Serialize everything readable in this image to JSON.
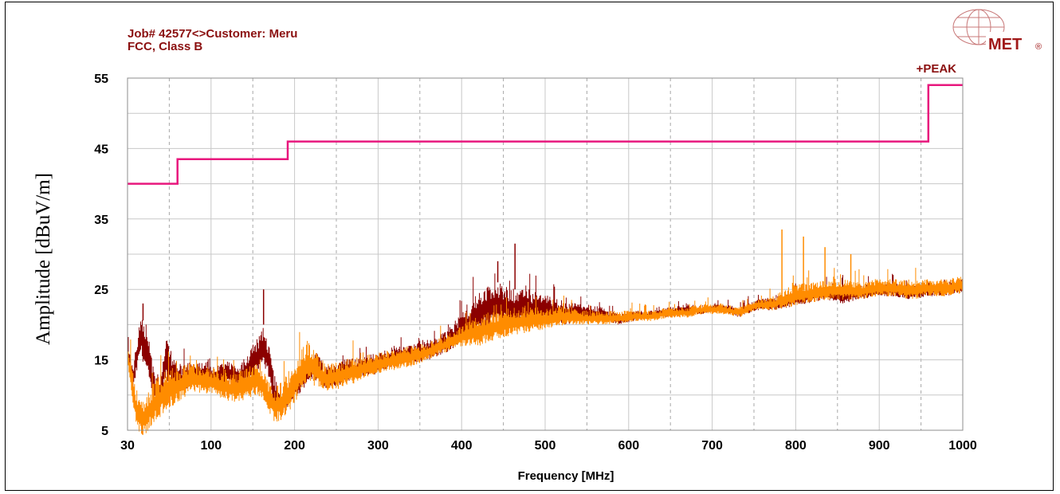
{
  "header": {
    "line1": "Job# 42577<>Customer: Meru",
    "line2": "FCC, Class B"
  },
  "logo": {
    "text": "MET",
    "registered": "®",
    "icon": "globe-icon",
    "color": "#a01818"
  },
  "chart_data": {
    "type": "line",
    "xlabel": "Frequency [MHz]",
    "ylabel": "Amplitude [dBuV/m]",
    "xlim": [
      30,
      1000
    ],
    "ylim": [
      5,
      55
    ],
    "x_ticks": [
      30,
      100,
      200,
      300,
      400,
      500,
      600,
      700,
      800,
      900,
      1000
    ],
    "y_ticks": [
      5,
      15,
      25,
      35,
      45,
      55
    ],
    "grid": true,
    "legend": {
      "placement": "top-right",
      "entries": [
        "+PEAK"
      ]
    },
    "series": [
      {
        "role": "limit",
        "color": "#e8177d",
        "x": [
          30,
          88,
          88,
          216,
          216,
          960,
          960,
          1000
        ],
        "y": [
          40,
          40,
          43.5,
          43.5,
          46,
          46,
          54,
          54
        ]
      },
      {
        "role": "peak-upper",
        "color": "#8b0000",
        "x": [
          30,
          36,
          45,
          52,
          60,
          66,
          75,
          82,
          90,
          100,
          110,
          120,
          130,
          140,
          150,
          160,
          170,
          180,
          188,
          195,
          200,
          210,
          220,
          230,
          240,
          250,
          260,
          280,
          300,
          320,
          340,
          360,
          380,
          400,
          420,
          440,
          460,
          480,
          500,
          520,
          540,
          560,
          580,
          600,
          620,
          640,
          660,
          680,
          700,
          720,
          740,
          760,
          780,
          800,
          820,
          840,
          860,
          880,
          900,
          920,
          940,
          960,
          980,
          1000
        ],
        "y": [
          18,
          14,
          21,
          20,
          14,
          11,
          18,
          16,
          14,
          15,
          14.5,
          15,
          14,
          14.5,
          15,
          14,
          16,
          18,
          20,
          17,
          13,
          10,
          12,
          14,
          15,
          16,
          14,
          15,
          15.5,
          16,
          17,
          17.5,
          18,
          19,
          22,
          25,
          26,
          25,
          25,
          24,
          23.5,
          23,
          22.5,
          21.5,
          22,
          22,
          22.5,
          23,
          22.5,
          23,
          22.5,
          23.5,
          24,
          24.5,
          25,
          25.5,
          25.5,
          25.5,
          26,
          26,
          25.5,
          26,
          26,
          26.5
        ]
      },
      {
        "role": "peak-lower",
        "color": "#8b0000",
        "x": [
          30,
          36,
          45,
          52,
          60,
          66,
          75,
          82,
          90,
          100,
          110,
          120,
          130,
          140,
          150,
          160,
          170,
          180,
          188,
          195,
          200,
          210,
          220,
          230,
          240,
          250,
          260,
          280,
          300,
          320,
          340,
          360,
          380,
          400,
          420,
          440,
          460,
          480,
          500,
          520,
          540,
          560,
          580,
          600,
          620,
          640,
          660,
          680,
          700,
          720,
          740,
          760,
          780,
          800,
          820,
          840,
          860,
          880,
          900,
          920,
          940,
          960,
          980,
          1000
        ],
        "y": [
          15,
          10,
          16,
          13,
          9,
          8,
          12,
          11,
          10,
          11,
          11.5,
          12,
          11.5,
          11,
          11.5,
          11,
          12,
          13,
          14,
          12,
          8,
          7,
          9,
          10,
          12,
          12,
          11,
          11.5,
          12.5,
          13,
          14,
          14.5,
          15,
          16,
          17.5,
          19,
          20,
          20,
          20,
          20.5,
          20,
          20.5,
          20.5,
          20,
          20.5,
          21,
          21,
          21.5,
          21.5,
          22,
          21,
          22,
          22,
          22.5,
          23,
          23.5,
          23,
          23.5,
          24,
          24,
          23.5,
          24,
          24,
          24.5
        ]
      },
      {
        "role": "quasi-upper",
        "color": "#ff8c00",
        "x": [
          30,
          35,
          40,
          45,
          50,
          55,
          60,
          70,
          80,
          90,
          100,
          110,
          120,
          130,
          140,
          150,
          160,
          170,
          180,
          190,
          200,
          210,
          220,
          230,
          240,
          250,
          260,
          280,
          300,
          320,
          340,
          360,
          380,
          400,
          420,
          440,
          460,
          480,
          500,
          520,
          540,
          560,
          580,
          600,
          620,
          640,
          660,
          680,
          700,
          720,
          740,
          760,
          780,
          800,
          820,
          840,
          860,
          880,
          900,
          920,
          940,
          960,
          980,
          1000
        ],
        "y": [
          18,
          14,
          11,
          10,
          10,
          11,
          12,
          13,
          14,
          14,
          14.5,
          14.5,
          14,
          14,
          13.5,
          13,
          13.5,
          14,
          14.5,
          13,
          11,
          12,
          14,
          16,
          18,
          16,
          14.5,
          15,
          15.5,
          16,
          16.5,
          17,
          17.5,
          18.5,
          20,
          21.5,
          22,
          22.5,
          22.5,
          22.5,
          22.5,
          22,
          22,
          22,
          22,
          22,
          22.5,
          22.5,
          23,
          23,
          22.5,
          23.5,
          24,
          25.5,
          26,
          26.5,
          26.5,
          26,
          26.5,
          26.5,
          26.5,
          26.5,
          26.5,
          27
        ]
      },
      {
        "role": "quasi-lower",
        "color": "#ff8c00",
        "x": [
          30,
          35,
          40,
          45,
          50,
          55,
          60,
          70,
          80,
          90,
          100,
          110,
          120,
          130,
          140,
          150,
          160,
          170,
          180,
          190,
          200,
          210,
          220,
          230,
          240,
          250,
          260,
          280,
          300,
          320,
          340,
          360,
          380,
          400,
          420,
          440,
          460,
          480,
          500,
          520,
          540,
          560,
          580,
          600,
          620,
          640,
          660,
          680,
          700,
          720,
          740,
          760,
          780,
          800,
          820,
          840,
          860,
          880,
          900,
          920,
          940,
          960,
          980,
          1000
        ],
        "y": [
          15,
          9,
          6,
          4,
          4,
          5,
          6,
          7,
          8,
          9,
          10,
          10.5,
          10,
          10,
          9.5,
          9,
          9,
          9.5,
          10,
          9,
          6,
          6.5,
          8,
          10,
          12,
          11,
          10.5,
          11,
          12,
          13,
          13.5,
          14,
          15,
          16,
          17,
          17,
          18,
          18.5,
          19,
          19.5,
          20,
          20,
          20,
          20,
          20.5,
          20.5,
          21,
          21,
          21.5,
          21.5,
          21,
          22,
          22,
          22.5,
          23,
          23.5,
          23.5,
          23.5,
          24,
          24,
          23.5,
          24,
          24,
          24.5
        ]
      }
    ],
    "spikes": [
      {
        "x": 480,
        "y": 31.5,
        "color": "#8b0000"
      },
      {
        "x": 460,
        "y": 29,
        "color": "#8b0000"
      },
      {
        "x": 188,
        "y": 25,
        "color": "#8b0000"
      },
      {
        "x": 48,
        "y": 23,
        "color": "#8b0000"
      },
      {
        "x": 790,
        "y": 33.5,
        "color": "#ff8c00"
      },
      {
        "x": 815,
        "y": 32.5,
        "color": "#ff8c00"
      },
      {
        "x": 840,
        "y": 31,
        "color": "#ff8c00"
      },
      {
        "x": 870,
        "y": 30,
        "color": "#ff8c00"
      }
    ]
  }
}
